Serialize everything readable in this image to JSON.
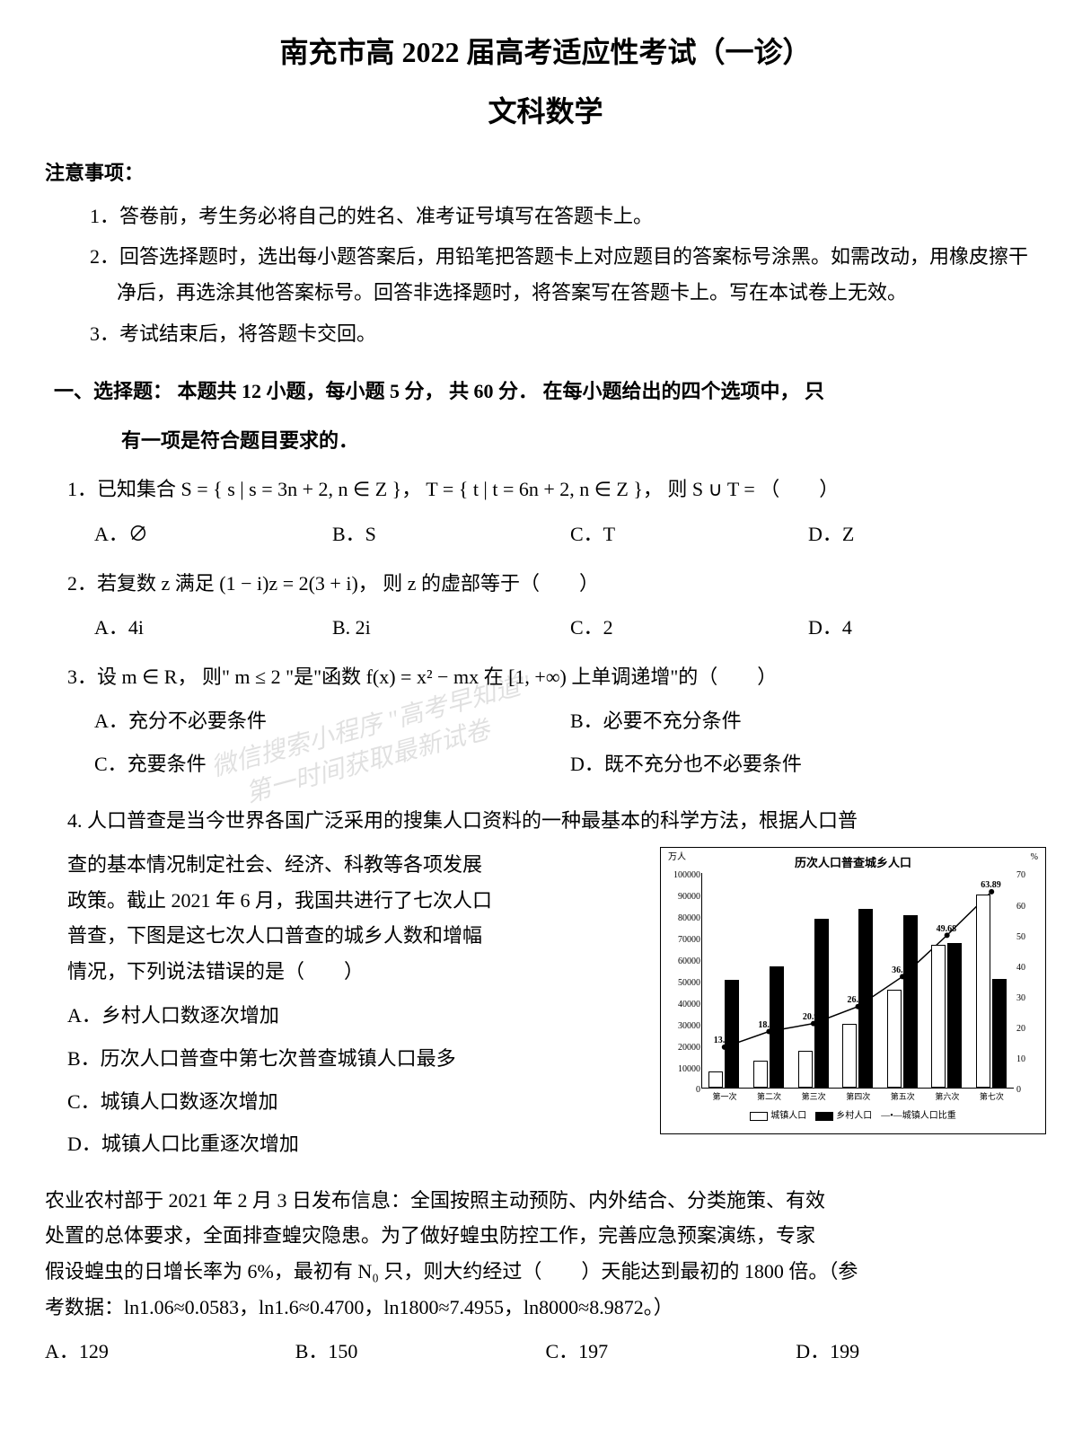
{
  "header": {
    "title_main": "南充市高 2022 届高考适应性考试（一诊）",
    "title_sub": "文科数学"
  },
  "notice": {
    "header": "注意事项：",
    "items": [
      "1．答卷前，考生务必将自己的姓名、准考证号填写在答题卡上。",
      "2．回答选择题时，选出每小题答案后，用铅笔把答题卡上对应题目的答案标号涂黑。如需改动，用橡皮擦干净后，再选涂其他答案标号。回答非选择题时，将答案写在答题卡上。写在本试卷上无效。",
      "3．考试结束后，将答题卡交回。"
    ]
  },
  "section1": {
    "header_line1": "一、选择题： 本题共 12 小题，每小题 5 分， 共 60 分． 在每小题给出的四个选项中， 只",
    "header_line2": "有一项是符合题目要求的．"
  },
  "q1": {
    "text": "1．已知集合 S = { s | s = 3n + 2, n ∈ Z }，  T = { t | t = 6n + 2, n ∈ Z }， 则 S ∪ T = （　　）",
    "opts": {
      "a": "A．∅",
      "b": "B．S",
      "c": "C．T",
      "d": "D．Z"
    }
  },
  "q2": {
    "text": "2．若复数 z 满足 (1 − i)z = 2(3 + i)， 则 z 的虚部等于（　　）",
    "opts": {
      "a": "A．4i",
      "b": "B. 2i",
      "c": "C．2",
      "d": "D．4"
    }
  },
  "q3": {
    "text": "3．设 m ∈ R， 则\" m ≤ 2 \"是\"函数 f(x) = x² − mx 在 [1, +∞) 上单调递增\"的（　　）",
    "opts": {
      "a": "A．充分不必要条件",
      "b": "B．必要不充分条件",
      "c": "C．充要条件",
      "d": "D．既不充分也不必要条件"
    }
  },
  "q4": {
    "text_lines": [
      "4. 人口普查是当今世界各国广泛采用的搜集人口资料的一种最基本的科学方法，根据人口普",
      "查的基本情况制定社会、经济、科教等各项发展",
      "政策。截止 2021 年 6 月，我国共进行了七次人口",
      "普查，下图是这七次人口普查的城乡人数和增幅",
      "情况，下列说法错误的是（　　）"
    ],
    "opts": {
      "a": "A．乡村人口数逐次增加",
      "b": "B．历次人口普查中第七次普查城镇人口最多",
      "c": "C．城镇人口数逐次增加",
      "d": "D．城镇人口比重逐次增加"
    }
  },
  "chart": {
    "title": "历次人口普查城乡人口",
    "y_left_label": "万人",
    "y_right_label": "%",
    "y_left_ticks": [
      0,
      10000,
      20000,
      30000,
      40000,
      50000,
      60000,
      70000,
      80000,
      90000,
      100000
    ],
    "y_left_max": 100000,
    "y_right_ticks": [
      0,
      10,
      20,
      30,
      40,
      50,
      60,
      70
    ],
    "y_right_max": 70,
    "x_labels": [
      "第一次",
      "第二次",
      "第三次",
      "第四次",
      "第五次",
      "第六次",
      "第七次"
    ],
    "urban": [
      7726,
      12710,
      17245,
      29971,
      45844,
      66557,
      90199
    ],
    "rural": [
      50534,
      56748,
      79014,
      83397,
      80739,
      67415,
      50979
    ],
    "ratio": [
      13.2,
      18.3,
      20.91,
      26.44,
      36.22,
      49.68,
      63.89
    ],
    "data_labels_shown": [
      "13.2",
      "18.30",
      "20.91",
      "26.44",
      "36.22",
      "49.68",
      "63.89"
    ],
    "legend": {
      "urban": "城镇人口",
      "rural": "乡村人口",
      "line": "城镇人口比重"
    },
    "bar_white_fill": "#ffffff",
    "bar_black_fill": "#000000",
    "border_color": "#000000",
    "background": "#ffffff"
  },
  "q5": {
    "text_lines": [
      "农业农村部于 2021 年 2 月 3 日发布信息：全国按照主动预防、内外结合、分类施策、有效",
      "处置的总体要求，全面排查蝗灾隐患。为了做好蝗虫防控工作，完善应急预案演练，专家",
      "假设蝗虫的日增长率为 6%，最初有 N₀ 只，则大约经过（　　）天能达到最初的 1800 倍。（参",
      "考数据：ln1.06≈0.0583，ln1.6≈0.4700，ln1800≈7.4955，ln8000≈8.9872。）"
    ],
    "opts": {
      "a": "A．129",
      "b": "B．150",
      "c": "C．197",
      "d": "D．199"
    }
  },
  "watermark": {
    "line1": "微信搜索小程序 \"高考早知道\"",
    "line2": "第一时间获取最新试卷"
  }
}
